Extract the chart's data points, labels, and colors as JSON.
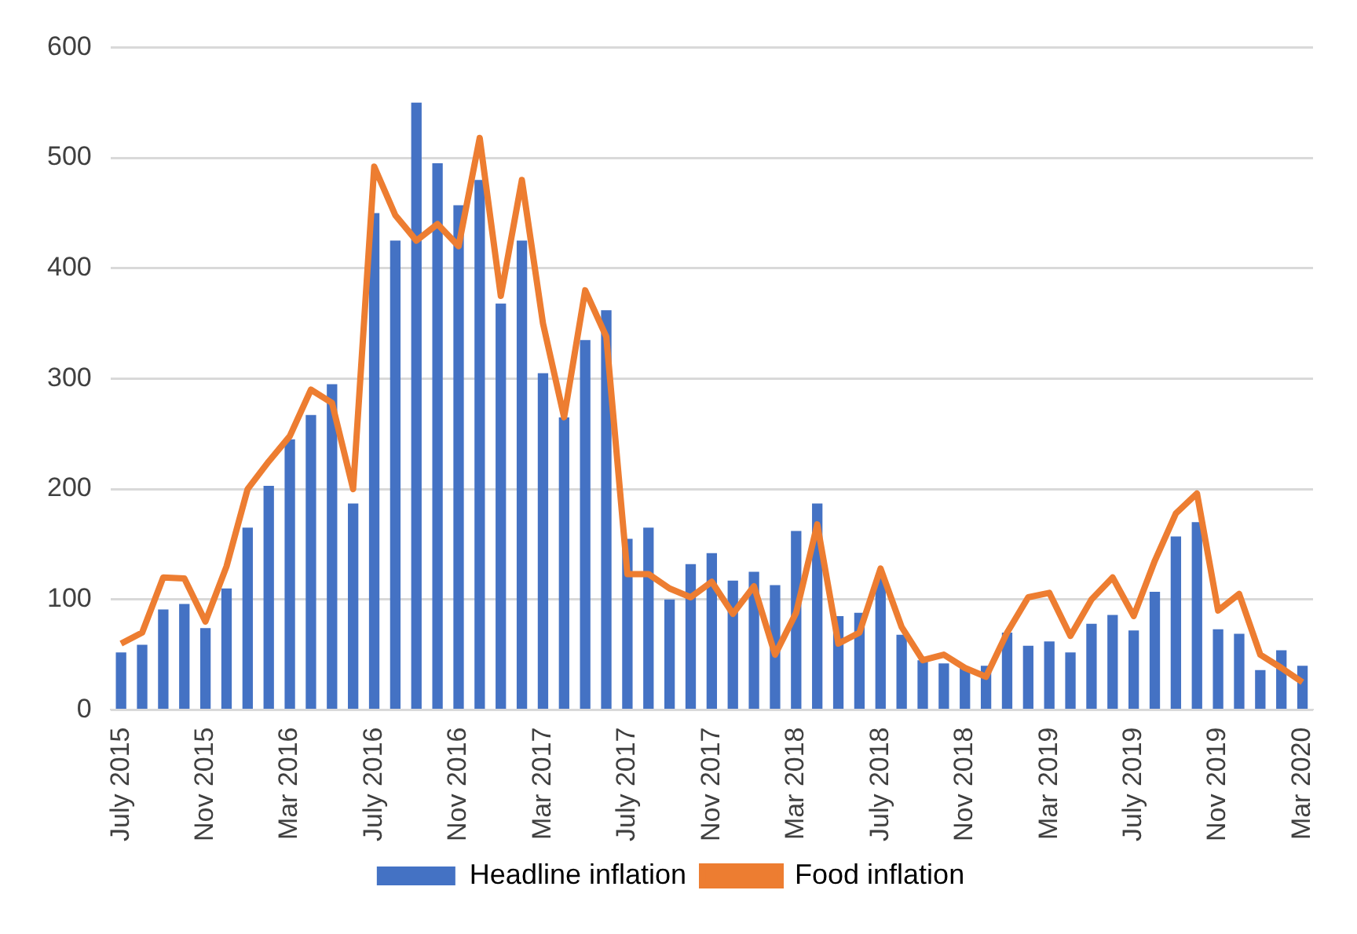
{
  "chart_data": {
    "type": "bar",
    "categories": [
      "July 2015",
      null,
      null,
      null,
      "Nov 2015",
      null,
      null,
      null,
      "Mar 2016",
      null,
      null,
      null,
      "July 2016",
      null,
      null,
      null,
      "Nov 2016",
      null,
      null,
      null,
      "Mar 2017",
      null,
      null,
      null,
      "July 2017",
      null,
      null,
      null,
      "Nov 2017",
      null,
      null,
      null,
      "Mar 2018",
      null,
      null,
      null,
      "July 2018",
      null,
      null,
      null,
      "Nov 2018",
      null,
      null,
      null,
      "Mar 2019",
      null,
      null,
      null,
      "July 2019",
      null,
      null,
      null,
      "Nov 2019",
      null,
      null,
      null,
      "Mar 2020"
    ],
    "series": [
      {
        "name": "Headline inflation",
        "color": "#4472c4",
        "values": [
          52,
          59,
          91,
          96,
          74,
          110,
          165,
          203,
          245,
          267,
          295,
          187,
          450,
          425,
          550,
          495,
          457,
          480,
          368,
          425,
          305,
          265,
          335,
          362,
          155,
          165,
          100,
          132,
          142,
          117,
          125,
          113,
          162,
          187,
          85,
          88,
          122,
          68,
          45,
          42,
          38,
          40,
          70,
          58,
          62,
          52,
          78,
          86,
          72,
          107,
          157,
          170,
          73,
          69,
          36,
          54,
          40
        ]
      },
      {
        "name": "Food inflation",
        "type": "line",
        "color": "#ed7d31",
        "values": [
          60,
          70,
          120,
          119,
          80,
          130,
          200,
          225,
          248,
          290,
          278,
          200,
          492,
          448,
          425,
          440,
          420,
          518,
          375,
          480,
          350,
          265,
          380,
          338,
          123,
          123,
          110,
          102,
          116,
          87,
          112,
          50,
          88,
          168,
          60,
          70,
          128,
          75,
          45,
          50,
          38,
          30,
          70,
          102,
          106,
          67,
          100,
          120,
          85,
          135,
          178,
          196,
          90,
          105,
          50,
          38,
          25
        ]
      }
    ],
    "ylim": [
      0,
      600
    ],
    "yticks": [
      0,
      100,
      200,
      300,
      400,
      500,
      600
    ],
    "grid": "y",
    "legend": "bottom",
    "marker": "none"
  }
}
